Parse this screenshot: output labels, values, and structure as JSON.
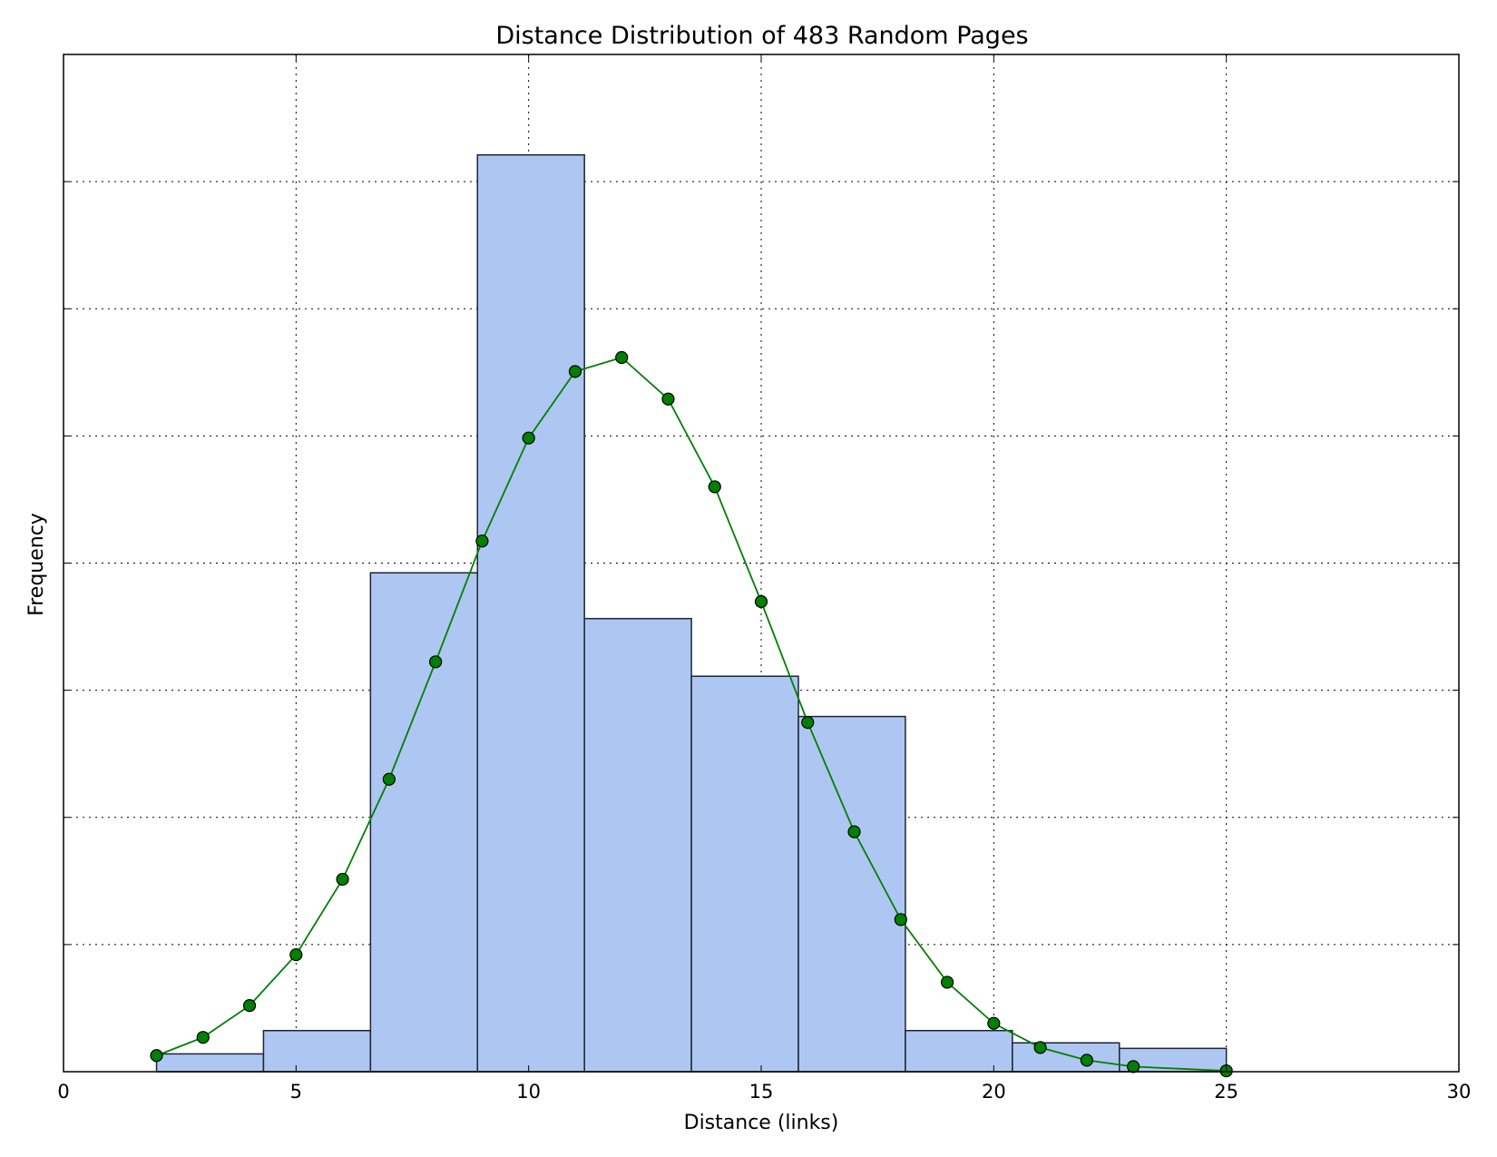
{
  "chart_data": {
    "type": "bar",
    "title": "Distance Distribution of 483 Random Pages",
    "xlabel": "Distance (links)",
    "ylabel": "Frequency",
    "xlim": [
      0,
      30
    ],
    "ylim": [
      0,
      0.24
    ],
    "xticks": [
      0,
      5,
      10,
      15,
      20,
      25,
      30
    ],
    "yticks": [
      0.03,
      0.06,
      0.09,
      0.12,
      0.15,
      0.18,
      0.21
    ],
    "show_ytick_labels": false,
    "grid": true,
    "histogram": {
      "bin_edges": [
        2,
        4.3,
        6.6,
        8.9,
        11.2,
        13.5,
        15.8,
        18.1,
        20.4,
        22.7,
        25
      ],
      "values": [
        0.0042,
        0.0097,
        0.1177,
        0.2163,
        0.1069,
        0.0933,
        0.0838,
        0.0097,
        0.0068,
        0.0055
      ]
    },
    "curve": {
      "x": [
        2,
        3,
        4,
        5,
        6,
        7,
        8,
        9,
        10,
        11,
        12,
        13,
        14,
        15,
        16,
        17,
        18,
        19,
        20,
        21,
        22,
        23,
        25
      ],
      "y": [
        0.0038,
        0.0081,
        0.0156,
        0.0276,
        0.0454,
        0.069,
        0.0967,
        0.1252,
        0.1495,
        0.1652,
        0.1685,
        0.1587,
        0.138,
        0.1109,
        0.0824,
        0.0566,
        0.0359,
        0.0211,
        0.0114,
        0.0057,
        0.0027,
        0.0012,
        0.0002
      ]
    },
    "colors": {
      "bar_fill": "#aec7f2",
      "bar_edge": "#1c2433",
      "curve": "#008000",
      "marker": "#008000"
    }
  }
}
